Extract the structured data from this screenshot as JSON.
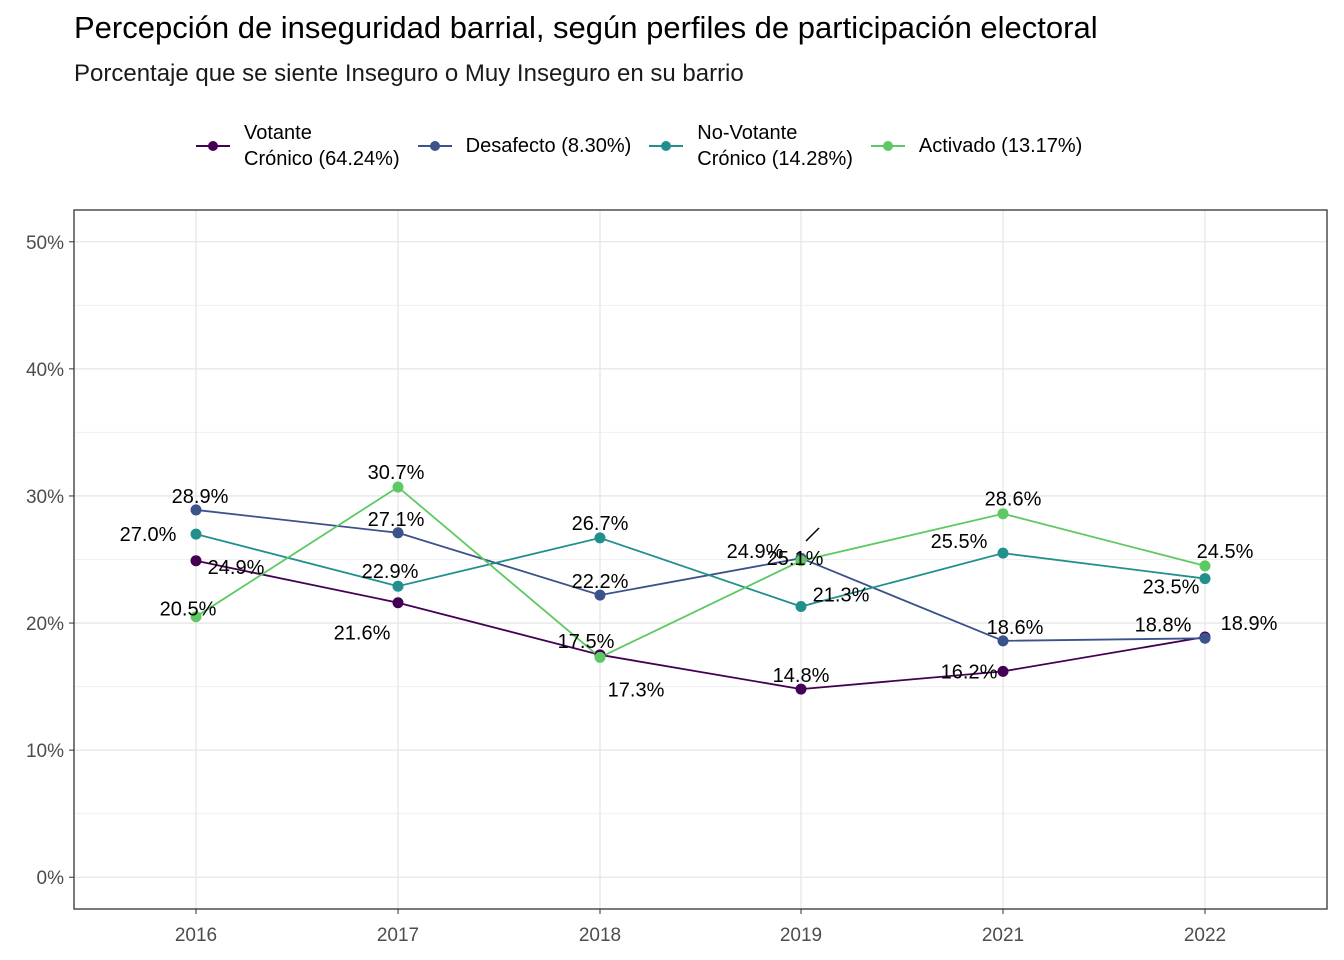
{
  "chart_data": {
    "type": "line",
    "title": "Percepción de inseguridad barrial, según perfiles de participación electoral",
    "subtitle": "Porcentaje que se siente Inseguro o Muy Inseguro en su barrio",
    "xlabel": "",
    "ylabel": "",
    "x": [
      "2016",
      "2017",
      "2018",
      "2019",
      "2021",
      "2022"
    ],
    "y_ticks": [
      "0%",
      "10%",
      "20%",
      "30%",
      "40%",
      "50%"
    ],
    "ylim": [
      -2.5,
      52.5
    ],
    "grid": true,
    "legend_position": "top",
    "series": [
      {
        "name": "Votante\nCrónico (64.24%)",
        "color": "#440154",
        "values": [
          24.9,
          21.6,
          17.5,
          14.8,
          16.2,
          18.9
        ],
        "labels": [
          "24.9%",
          "21.6%",
          "17.5%",
          "14.8%",
          "16.2%",
          "18.9%"
        ]
      },
      {
        "name": "Desafecto (8.30%)",
        "color": "#3b528b",
        "values": [
          28.9,
          27.1,
          22.2,
          25.1,
          18.6,
          18.8
        ],
        "labels": [
          "28.9%",
          "27.1%",
          "22.2%",
          "25.1%",
          "18.6%",
          "18.8%"
        ]
      },
      {
        "name": "No-Votante\nCrónico (14.28%)",
        "color": "#21908c",
        "values": [
          27.0,
          22.9,
          26.7,
          21.3,
          25.5,
          23.5
        ],
        "labels": [
          "27.0%",
          "22.9%",
          "26.7%",
          "21.3%",
          "25.5%",
          "23.5%"
        ]
      },
      {
        "name": "Activado (13.17%)",
        "color": "#5ec962",
        "values": [
          20.5,
          30.7,
          17.3,
          24.9,
          28.6,
          24.5
        ],
        "labels": [
          "20.5%",
          "30.7%",
          "17.3%",
          "24.9%",
          "28.6%",
          "24.5%"
        ]
      }
    ]
  }
}
